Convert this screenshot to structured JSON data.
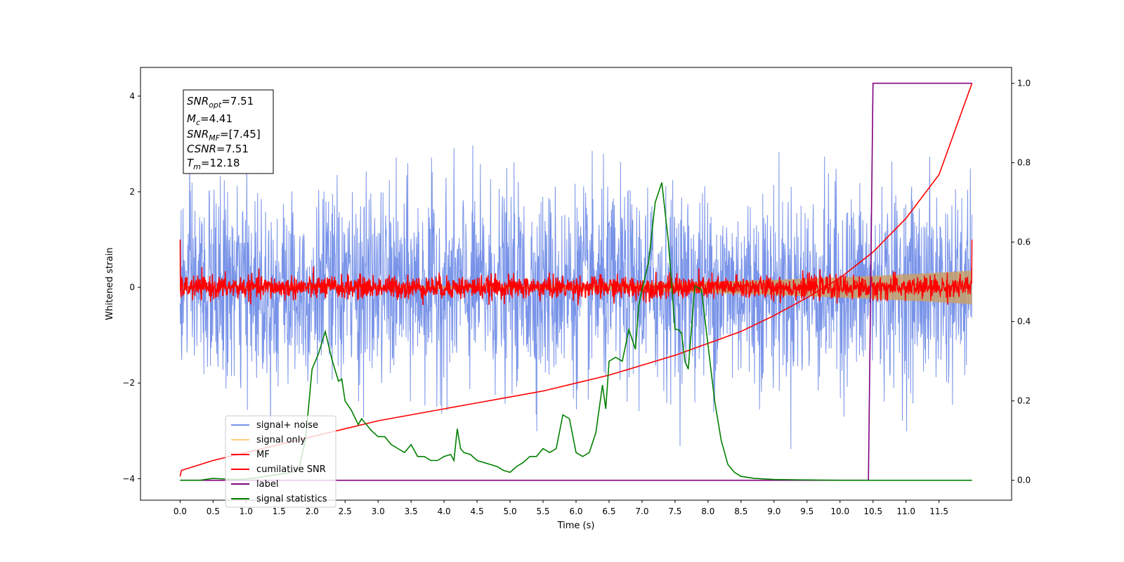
{
  "chart_data": {
    "type": "line",
    "xlabel": "Time (s)",
    "ylabel": "Whitened strain",
    "xlim": [
      -0.6,
      12.6
    ],
    "ylim": [
      -4.45,
      4.6
    ],
    "y2lim": [
      -0.05,
      1.04
    ],
    "x_ticks": [
      "0.0",
      "0.5",
      "1.0",
      "1.5",
      "2.0",
      "2.5",
      "3.0",
      "3.5",
      "4.0",
      "4.5",
      "5.0",
      "5.5",
      "6.0",
      "6.5",
      "7.0",
      "7.5",
      "8.0",
      "8.5",
      "9.0",
      "9.5",
      "10.0",
      "10.5",
      "11.0",
      "11.5"
    ],
    "y_ticks": [
      "−4",
      "−2",
      "0",
      "2",
      "4"
    ],
    "y2_ticks": [
      "0.0",
      "0.2",
      "0.4",
      "0.6",
      "0.8",
      "1.0"
    ],
    "legend_position": "lower-left",
    "annotation": {
      "snr_opt": "=7.51",
      "mc": "=4.41",
      "snr_mf": "=[7.45]",
      "csnr": "=7.51",
      "tm": "=12.18"
    },
    "series": [
      {
        "name": "signal+ noise",
        "color": "#7893e8",
        "axis": "left",
        "kind": "noise",
        "x_range": [
          0.0,
          12.0
        ],
        "std": 1.0,
        "range": [
          -4.0,
          4.2
        ]
      },
      {
        "name": "signal only",
        "color": "#ffcc80",
        "axis": "left",
        "kind": "chirp",
        "x_range": [
          0.0,
          12.0
        ],
        "amplitude_start": 0.02,
        "amplitude_end": 0.35
      },
      {
        "name": "MF",
        "color": "#ff0000",
        "axis": "left",
        "kind": "noise",
        "x_range": [
          0.0,
          12.0
        ],
        "std": 0.12,
        "endpoint_value": 1.0
      },
      {
        "name": "cumilative SNR",
        "color": "#ff0000",
        "axis": "right",
        "kind": "line",
        "x": [
          0.0,
          0.02,
          0.5,
          1.0,
          1.5,
          2.0,
          2.5,
          3.0,
          3.5,
          4.0,
          4.5,
          5.0,
          5.5,
          6.0,
          6.5,
          7.0,
          7.5,
          8.0,
          8.5,
          9.0,
          9.5,
          10.0,
          10.5,
          11.0,
          11.5,
          12.0
        ],
        "y": [
          0.01,
          0.025,
          0.05,
          0.07,
          0.09,
          0.11,
          0.13,
          0.15,
          0.165,
          0.18,
          0.195,
          0.21,
          0.225,
          0.245,
          0.265,
          0.29,
          0.315,
          0.345,
          0.375,
          0.415,
          0.46,
          0.51,
          0.575,
          0.66,
          0.77,
          1.0
        ]
      },
      {
        "name": "label",
        "color": "#800080",
        "axis": "right",
        "kind": "line",
        "x": [
          0.0,
          10.43,
          10.5,
          12.0
        ],
        "y": [
          0.0,
          0.0,
          1.0,
          1.0
        ]
      },
      {
        "name": "signal statistics",
        "color": "#008000",
        "axis": "right",
        "kind": "line",
        "x": [
          0.0,
          0.3,
          0.5,
          0.7,
          0.9,
          1.1,
          1.3,
          1.5,
          1.7,
          1.8,
          1.9,
          2.0,
          2.1,
          2.2,
          2.3,
          2.4,
          2.45,
          2.5,
          2.6,
          2.7,
          2.75,
          2.8,
          2.9,
          3.0,
          3.1,
          3.2,
          3.3,
          3.4,
          3.5,
          3.6,
          3.7,
          3.8,
          3.9,
          4.0,
          4.1,
          4.15,
          4.2,
          4.25,
          4.3,
          4.4,
          4.5,
          4.6,
          4.7,
          4.8,
          4.9,
          5.0,
          5.1,
          5.2,
          5.3,
          5.4,
          5.5,
          5.6,
          5.7,
          5.8,
          5.9,
          6.0,
          6.1,
          6.2,
          6.3,
          6.4,
          6.45,
          6.5,
          6.6,
          6.7,
          6.8,
          6.9,
          6.95,
          7.0,
          7.1,
          7.2,
          7.3,
          7.4,
          7.5,
          7.55,
          7.6,
          7.65,
          7.7,
          7.8,
          7.9,
          8.0,
          8.1,
          8.2,
          8.3,
          8.4,
          8.5,
          8.7,
          9.0,
          9.5,
          10.0,
          11.0,
          12.0
        ],
        "y": [
          0.0,
          0.0,
          0.005,
          0.003,
          0.002,
          0.005,
          0.01,
          0.015,
          0.02,
          0.03,
          0.1,
          0.28,
          0.32,
          0.375,
          0.305,
          0.25,
          0.255,
          0.2,
          0.175,
          0.14,
          0.155,
          0.145,
          0.125,
          0.11,
          0.11,
          0.09,
          0.08,
          0.07,
          0.09,
          0.06,
          0.06,
          0.05,
          0.05,
          0.06,
          0.065,
          0.05,
          0.13,
          0.08,
          0.07,
          0.065,
          0.05,
          0.045,
          0.04,
          0.035,
          0.025,
          0.02,
          0.035,
          0.045,
          0.06,
          0.06,
          0.08,
          0.07,
          0.08,
          0.165,
          0.155,
          0.07,
          0.06,
          0.07,
          0.12,
          0.24,
          0.18,
          0.3,
          0.31,
          0.3,
          0.38,
          0.33,
          0.44,
          0.48,
          0.55,
          0.7,
          0.75,
          0.6,
          0.38,
          0.38,
          0.37,
          0.3,
          0.28,
          0.49,
          0.48,
          0.34,
          0.2,
          0.1,
          0.04,
          0.02,
          0.01,
          0.005,
          0.002,
          0.001,
          0.0,
          0.0,
          0.0
        ]
      }
    ]
  }
}
